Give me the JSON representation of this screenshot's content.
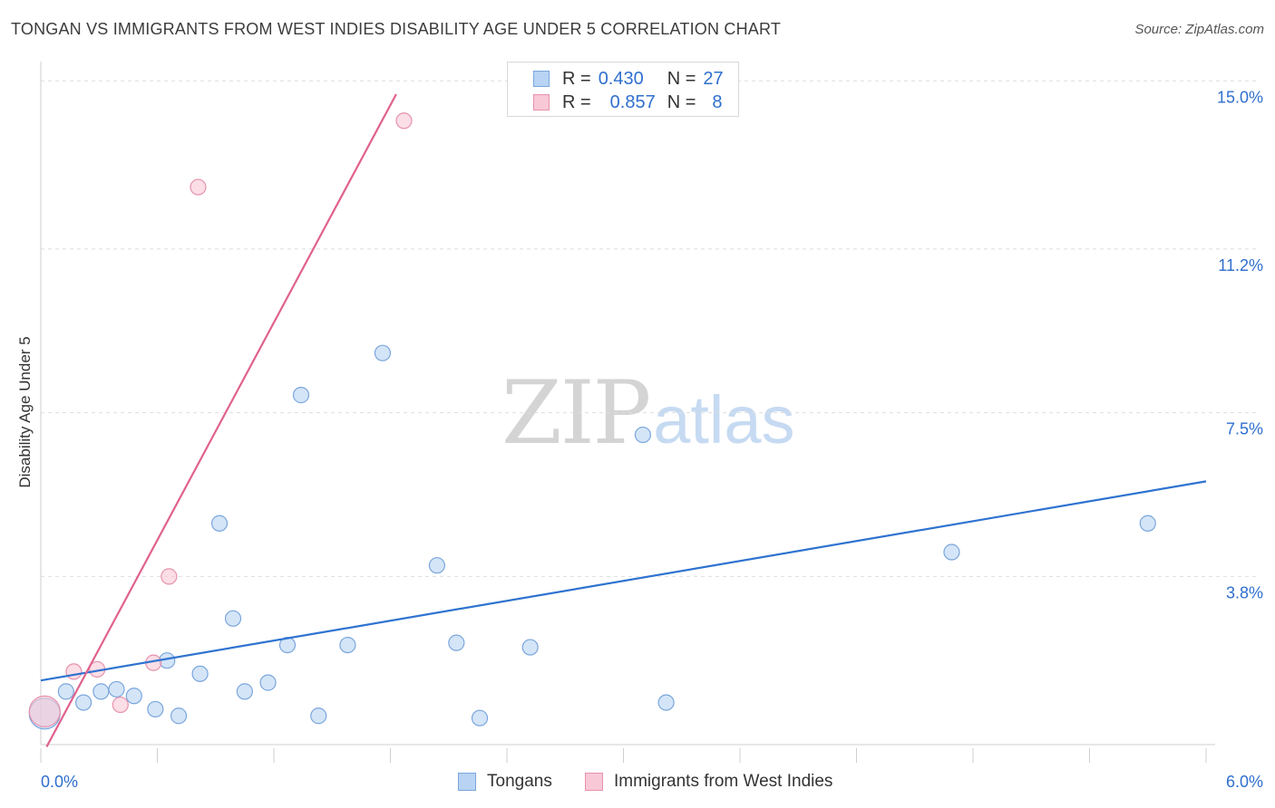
{
  "header": {
    "title": "TONGAN VS IMMIGRANTS FROM WEST INDIES DISABILITY AGE UNDER 5 CORRELATION CHART",
    "source": "Source: ZipAtlas.com"
  },
  "watermark": {
    "zip": "ZIP",
    "atlas": "atlas"
  },
  "legend": {
    "rows": [
      {
        "r_label": "R =",
        "r_value": "0.430",
        "n_label": "N =",
        "n_value": "27"
      },
      {
        "r_label": "R =",
        "r_value": "0.857",
        "n_label": "N =",
        "n_value": "8"
      }
    ]
  },
  "colors": {
    "tongans_fill": "#b8d3f3",
    "tongans_stroke": "#7aa6dc",
    "tongans_line": "#2f73d0",
    "westindies_fill": "#f8c8d6",
    "westindies_stroke": "#e692ad",
    "westindies_line": "#e0618d",
    "value_text": "#2f6fce",
    "grid": "#dedede"
  },
  "chart_data": {
    "type": "scatter",
    "title": "TONGAN VS IMMIGRANTS FROM WEST INDIES DISABILITY AGE UNDER 5 CORRELATION CHART",
    "xlabel": "",
    "ylabel": "Disability Age Under 5",
    "xlim": [
      0,
      6
    ],
    "ylim": [
      0,
      15.6
    ],
    "x_tick_labels": [
      "0.0%",
      "6.0%"
    ],
    "y_ticks": [
      3.8,
      7.5,
      11.2,
      15.0
    ],
    "y_tick_labels": [
      "3.8%",
      "7.5%",
      "11.2%",
      "15.0%"
    ],
    "grid": true,
    "series": [
      {
        "name": "Tongans",
        "color_key": "tongans",
        "points": [
          {
            "x": 0.02,
            "y": 0.7,
            "big": true
          },
          {
            "x": 0.13,
            "y": 1.2
          },
          {
            "x": 0.22,
            "y": 0.95
          },
          {
            "x": 0.31,
            "y": 1.2
          },
          {
            "x": 0.39,
            "y": 1.25
          },
          {
            "x": 0.48,
            "y": 1.1
          },
          {
            "x": 0.59,
            "y": 0.8
          },
          {
            "x": 0.65,
            "y": 1.9
          },
          {
            "x": 0.71,
            "y": 0.65
          },
          {
            "x": 0.82,
            "y": 1.6
          },
          {
            "x": 0.92,
            "y": 5.0
          },
          {
            "x": 0.99,
            "y": 2.85
          },
          {
            "x": 1.05,
            "y": 1.2
          },
          {
            "x": 1.17,
            "y": 1.4
          },
          {
            "x": 1.27,
            "y": 2.25
          },
          {
            "x": 1.34,
            "y": 7.9
          },
          {
            "x": 1.43,
            "y": 0.65
          },
          {
            "x": 1.58,
            "y": 2.25
          },
          {
            "x": 1.76,
            "y": 8.85
          },
          {
            "x": 2.04,
            "y": 4.05
          },
          {
            "x": 2.14,
            "y": 2.3
          },
          {
            "x": 2.26,
            "y": 0.6
          },
          {
            "x": 2.52,
            "y": 2.2
          },
          {
            "x": 3.1,
            "y": 7.0
          },
          {
            "x": 3.22,
            "y": 0.95
          },
          {
            "x": 4.69,
            "y": 4.35
          },
          {
            "x": 5.7,
            "y": 5.0
          }
        ],
        "trend": {
          "x0": 0.0,
          "y0": 1.45,
          "x1": 6.0,
          "y1": 5.95
        }
      },
      {
        "name": "Immigrants from West Indies",
        "color_key": "westindies",
        "points": [
          {
            "x": 0.02,
            "y": 0.75,
            "big": true
          },
          {
            "x": 0.17,
            "y": 1.65
          },
          {
            "x": 0.29,
            "y": 1.7
          },
          {
            "x": 0.41,
            "y": 0.9
          },
          {
            "x": 0.58,
            "y": 1.85
          },
          {
            "x": 0.66,
            "y": 3.8
          },
          {
            "x": 0.81,
            "y": 12.6
          },
          {
            "x": 1.87,
            "y": 14.1
          }
        ],
        "trend": {
          "x0": 0.03,
          "y0": -0.05,
          "x1": 1.83,
          "y1": 14.7
        }
      }
    ]
  },
  "bottom_legend": [
    {
      "label": "Tongans"
    },
    {
      "label": "Immigrants from West Indies"
    }
  ]
}
